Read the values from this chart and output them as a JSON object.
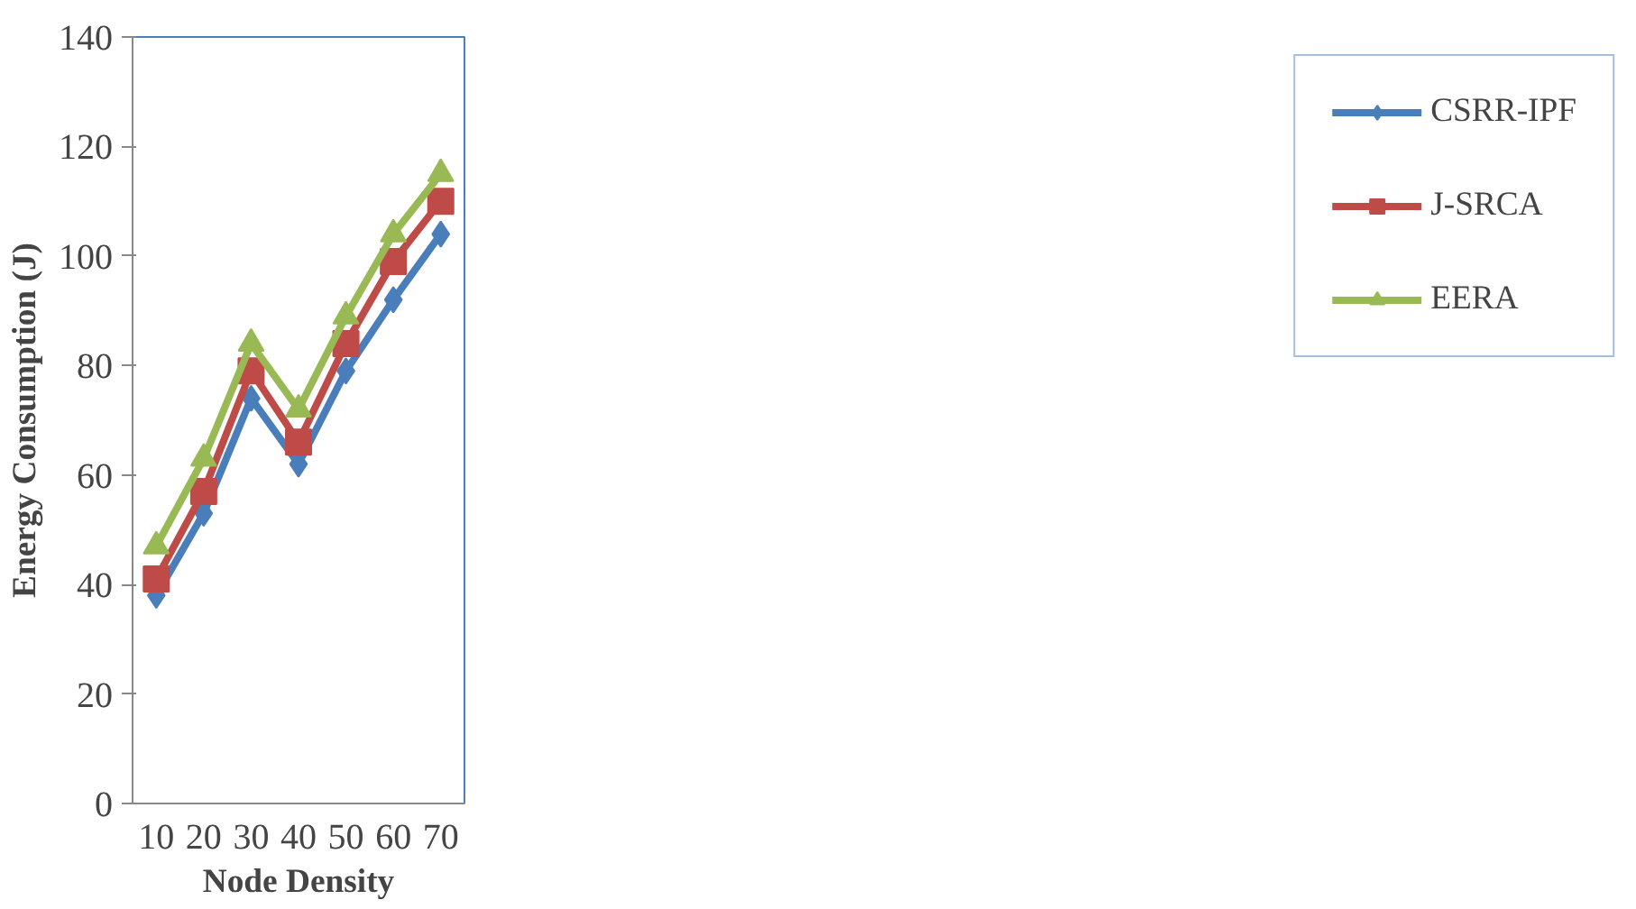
{
  "chart_data": {
    "type": "line",
    "xlabel": "Node Density",
    "ylabel": "Energy Consumption (J)",
    "categories": [
      "10",
      "20",
      "30",
      "40",
      "50",
      "60",
      "70"
    ],
    "series": [
      {
        "name": "CSRR-IPF",
        "color": "#4a7ebb",
        "marker": "diamond",
        "values": [
          38,
          53,
          74,
          62,
          79,
          92,
          104
        ]
      },
      {
        "name": "J-SRCA",
        "color": "#be4b48",
        "marker": "square",
        "values": [
          41,
          57,
          79,
          66,
          84,
          99,
          110
        ]
      },
      {
        "name": "EERA",
        "color": "#98b954",
        "marker": "triangle",
        "values": [
          47,
          63,
          84,
          72,
          89,
          104,
          115
        ]
      }
    ],
    "ylim": [
      0,
      140
    ],
    "yticks": [
      0,
      20,
      40,
      60,
      80,
      100,
      120,
      140
    ],
    "grid": false,
    "legend": "right",
    "line_style": "solid"
  }
}
